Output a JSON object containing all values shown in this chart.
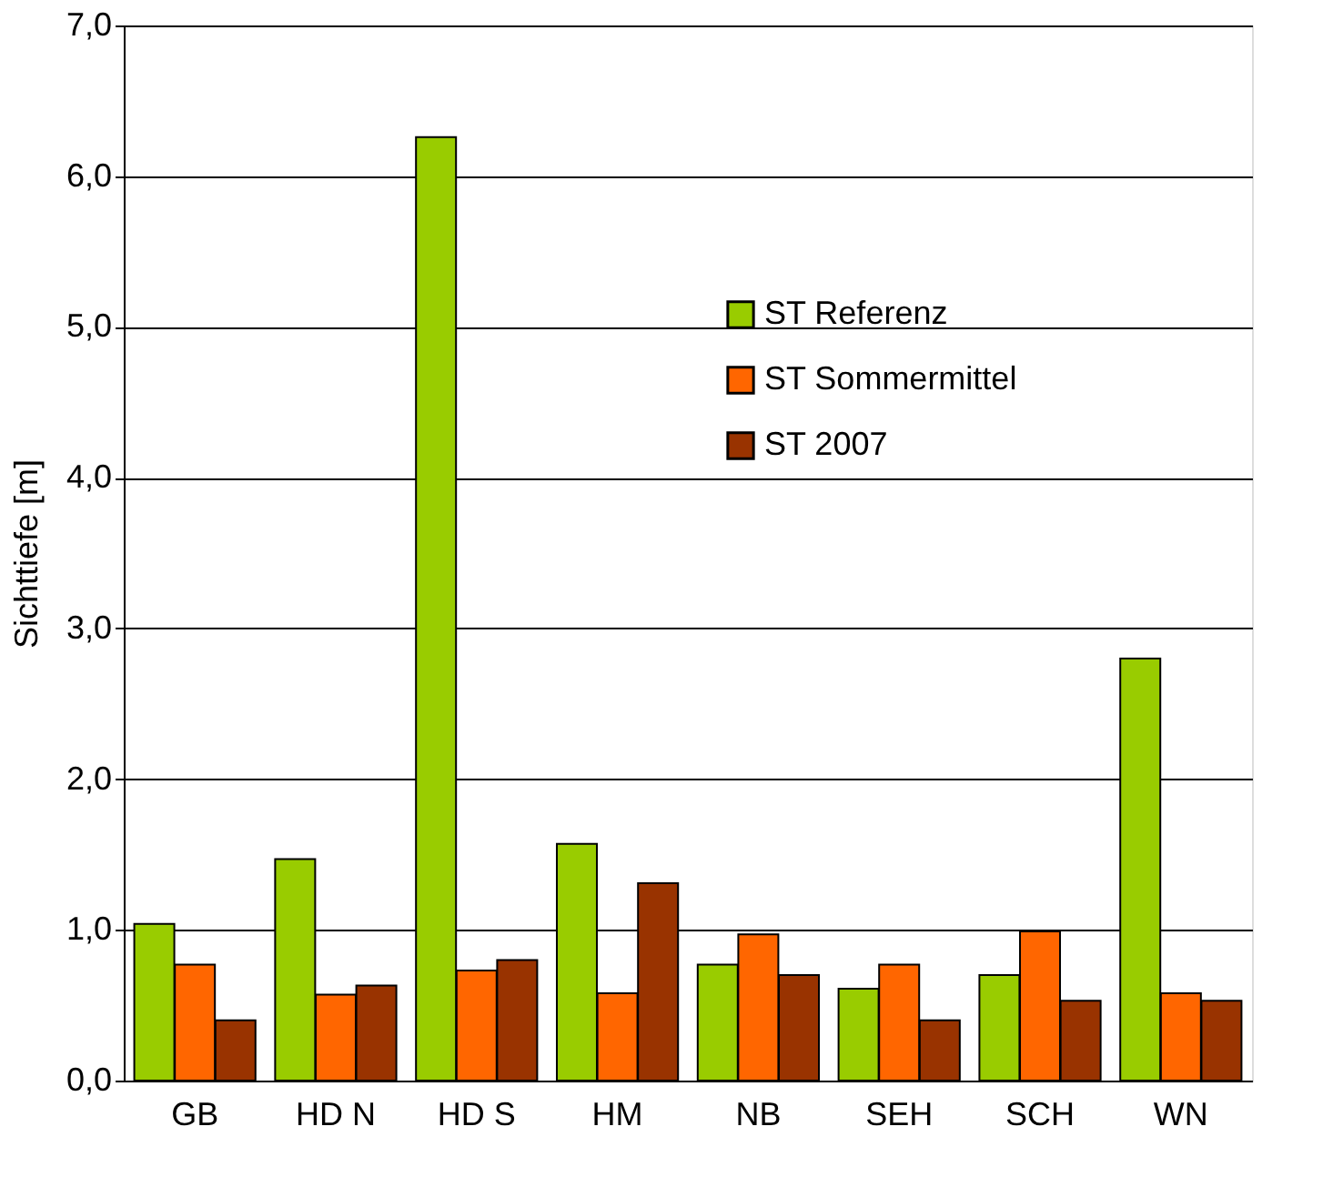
{
  "chart_data": {
    "type": "bar",
    "ylabel": "Sichttiefe [m]",
    "categories": [
      "GB",
      "HD N",
      "HD S",
      "HM",
      "NB",
      "SEH",
      "SCH",
      "WN"
    ],
    "series": [
      {
        "name": "ST Referenz",
        "color": "#99cc00",
        "values": [
          1.04,
          1.47,
          6.26,
          1.57,
          0.77,
          0.61,
          0.7,
          2.8
        ]
      },
      {
        "name": "ST Sommermittel",
        "color": "#ff6600",
        "values": [
          0.77,
          0.57,
          0.73,
          0.58,
          0.97,
          0.77,
          0.99,
          0.58
        ]
      },
      {
        "name": "ST 2007",
        "color": "#993300",
        "values": [
          0.4,
          0.63,
          0.8,
          1.31,
          0.7,
          0.4,
          0.53,
          0.53
        ]
      }
    ],
    "ylim": [
      0,
      7
    ],
    "yticks": [
      {
        "value": 0,
        "label": "0,0"
      },
      {
        "value": 1,
        "label": "1,0"
      },
      {
        "value": 2,
        "label": "2,0"
      },
      {
        "value": 3,
        "label": "3,0"
      },
      {
        "value": 4,
        "label": "4,0"
      },
      {
        "value": 5,
        "label": "5,0"
      },
      {
        "value": 6,
        "label": "6,0"
      },
      {
        "value": 7,
        "label": "7,0"
      }
    ],
    "grid": "y",
    "legend": "top right"
  }
}
